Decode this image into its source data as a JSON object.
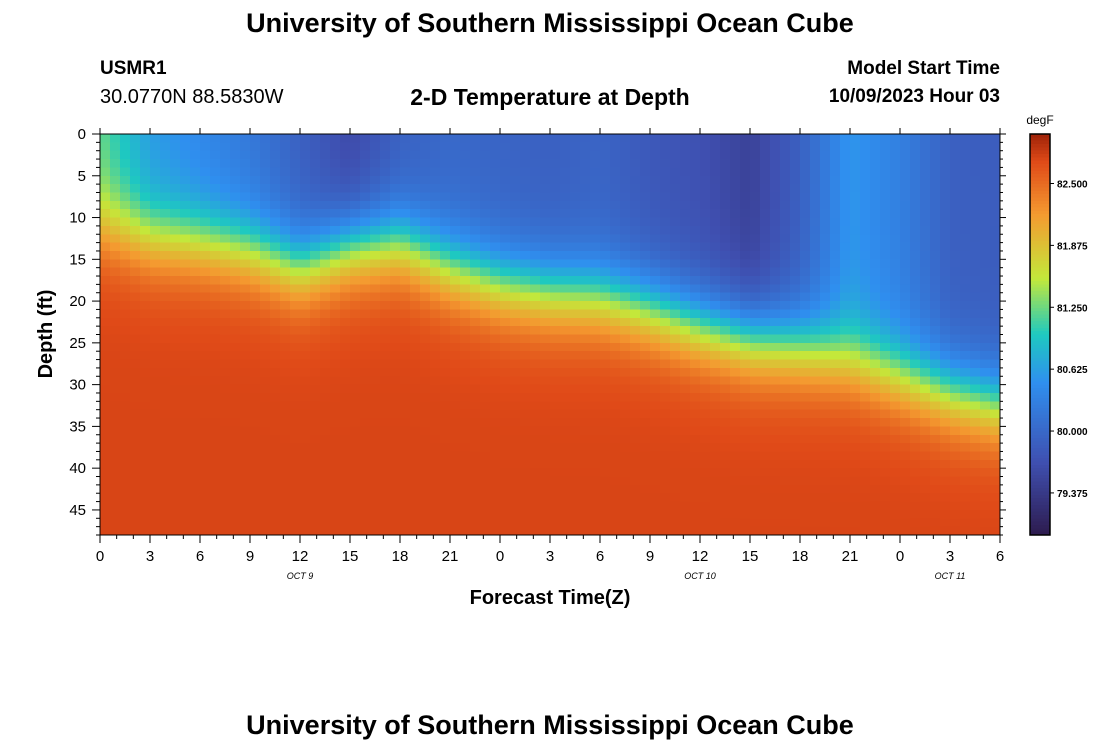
{
  "header": {
    "title": "University of Southern Mississippi Ocean Cube",
    "station_id": "USMR1",
    "coordinates": "30.0770N  88.5830W",
    "plot_title": "2-D Temperature at Depth",
    "model_start_label": "Model Start Time",
    "model_start_value": "10/09/2023 Hour 03"
  },
  "footer": {
    "title": "University of Southern Mississippi Ocean Cube"
  },
  "colors": {
    "cold": "#2d1b4e",
    "cool": "#3f4fb0",
    "mid_blue": "#2f8fef",
    "cyan": "#1ec9c0",
    "green_yellow": "#c4e83a",
    "orange": "#f49a30",
    "warm": "#e04a18",
    "hot": "#9e2208"
  },
  "chart_data": {
    "type": "heatmap",
    "title": "2-D Temperature at Depth",
    "xlabel": "Forecast Time(Z)",
    "ylabel": "Depth (ft)",
    "x_tick_labels": [
      "0",
      "3",
      "6",
      "9",
      "12",
      "15",
      "18",
      "21",
      "0",
      "3",
      "6",
      "9",
      "12",
      "15",
      "18",
      "21",
      "0",
      "3",
      "6"
    ],
    "x_range_hours": [
      0,
      54
    ],
    "date_labels": [
      {
        "label": "OCT 9",
        "hour": 12
      },
      {
        "label": "OCT 10",
        "hour": 36
      },
      {
        "label": "OCT 11",
        "hour": 51
      }
    ],
    "y_tick_labels": [
      "0",
      "5",
      "10",
      "15",
      "20",
      "25",
      "30",
      "35",
      "40",
      "45"
    ],
    "y_range_ft": [
      0,
      48
    ],
    "y_inverted": true,
    "colorbar": {
      "unit": "degF",
      "min": 78.95,
      "max": 83.0,
      "tick_labels": [
        "82.500",
        "81.875",
        "81.250",
        "80.625",
        "80.000",
        "79.375"
      ],
      "tick_values": [
        82.5,
        81.875,
        81.25,
        80.625,
        80.0,
        79.375
      ]
    },
    "thermocline_depth_ft_by_hour": [
      {
        "hour": 0,
        "depth": 11
      },
      {
        "hour": 3,
        "depth": 12.5
      },
      {
        "hour": 6,
        "depth": 13
      },
      {
        "hour": 9,
        "depth": 14
      },
      {
        "hour": 12,
        "depth": 16
      },
      {
        "hour": 15,
        "depth": 13.5
      },
      {
        "hour": 18,
        "depth": 13
      },
      {
        "hour": 21,
        "depth": 16
      },
      {
        "hour": 24,
        "depth": 18
      },
      {
        "hour": 27,
        "depth": 19
      },
      {
        "hour": 30,
        "depth": 19.5
      },
      {
        "hour": 33,
        "depth": 21
      },
      {
        "hour": 36,
        "depth": 23
      },
      {
        "hour": 39,
        "depth": 24.5
      },
      {
        "hour": 42,
        "depth": 25.5
      },
      {
        "hour": 45,
        "depth": 27
      },
      {
        "hour": 48,
        "depth": 29
      },
      {
        "hour": 51,
        "depth": 31
      },
      {
        "hour": 54,
        "depth": 32.5
      }
    ],
    "surface_temp_degF_by_hour": [
      {
        "hour": 0,
        "temp": 81.2
      },
      {
        "hour": 3,
        "temp": 80.6
      },
      {
        "hour": 6,
        "temp": 80.4
      },
      {
        "hour": 9,
        "temp": 80.2
      },
      {
        "hour": 12,
        "temp": 79.9
      },
      {
        "hour": 15,
        "temp": 79.6
      },
      {
        "hour": 18,
        "temp": 79.9
      },
      {
        "hour": 21,
        "temp": 80.0
      },
      {
        "hour": 24,
        "temp": 79.95
      },
      {
        "hour": 27,
        "temp": 79.9
      },
      {
        "hour": 30,
        "temp": 79.95
      },
      {
        "hour": 33,
        "temp": 79.8
      },
      {
        "hour": 36,
        "temp": 79.7
      },
      {
        "hour": 39,
        "temp": 79.5
      },
      {
        "hour": 42,
        "temp": 79.9
      },
      {
        "hour": 45,
        "temp": 80.55
      },
      {
        "hour": 48,
        "temp": 80.3
      },
      {
        "hour": 51,
        "temp": 79.9
      },
      {
        "hour": 54,
        "temp": 79.85
      }
    ],
    "bottom_temp_degF": 82.75
  }
}
